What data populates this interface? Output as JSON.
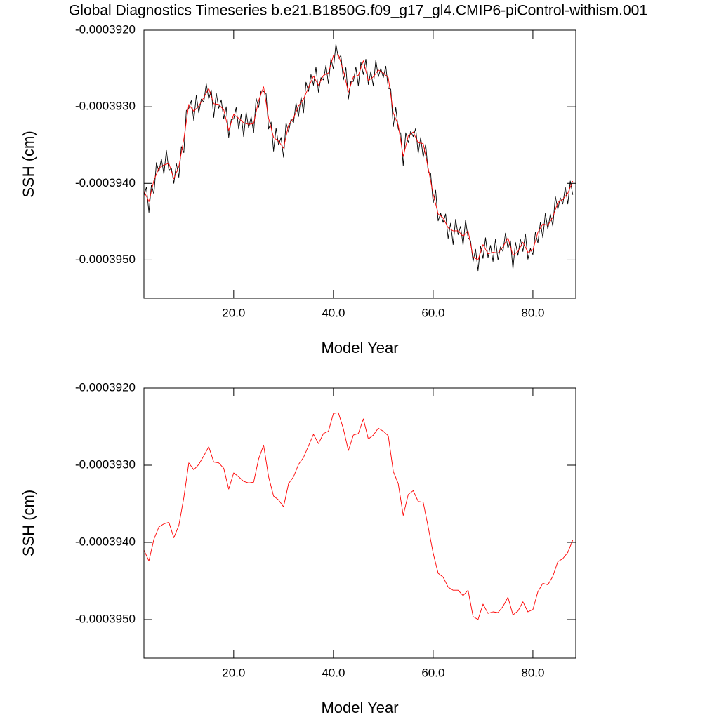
{
  "chart_data": [
    {
      "type": "line",
      "title": "Global Diagnostics Timeseries b.e21.B1850G.f09_g17_gl4.CMIP6-piControl-withism.001",
      "xlabel": "Model Year",
      "ylabel": "SSH (cm)",
      "xlim": [
        2,
        88.6
      ],
      "ylim": [
        -0.0003955,
        -0.000392
      ],
      "xticks": [
        {
          "value": 20,
          "label": "20.0"
        },
        {
          "value": 40,
          "label": "40.0"
        },
        {
          "value": 60,
          "label": "60.0"
        },
        {
          "value": 80,
          "label": "80.0"
        }
      ],
      "yticks": [
        {
          "value": -0.000392,
          "label": "-0.0003920"
        },
        {
          "value": -0.000393,
          "label": "-0.0003930"
        },
        {
          "value": -0.000394,
          "label": "-0.0003940"
        },
        {
          "value": -0.000395,
          "label": "-0.0003950"
        }
      ],
      "x": [
        2,
        3,
        4,
        5,
        6,
        7,
        8,
        9,
        10,
        11,
        12,
        13,
        14,
        15,
        16,
        17,
        18,
        19,
        20,
        21,
        22,
        23,
        24,
        25,
        26,
        27,
        28,
        29,
        30,
        31,
        32,
        33,
        34,
        35,
        36,
        37,
        38,
        39,
        40,
        41,
        42,
        43,
        44,
        45,
        46,
        47,
        48,
        49,
        50,
        51,
        52,
        53,
        54,
        55,
        56,
        57,
        58,
        59,
        60,
        61,
        62,
        63,
        64,
        65,
        66,
        67,
        68,
        69,
        70,
        71,
        72,
        73,
        74,
        75,
        76,
        77,
        78,
        79,
        80,
        81,
        82,
        83,
        84,
        85,
        86,
        87,
        88
      ],
      "series": [
        {
          "color": "#000000",
          "x": [
            2,
            2.5,
            3,
            3.5,
            4,
            4.5,
            5,
            5.5,
            6,
            6.5,
            7,
            7.5,
            8,
            8.5,
            9,
            9.5,
            10,
            10.5,
            11,
            11.5,
            12,
            12.5,
            13,
            13.5,
            14,
            14.5,
            15,
            15.5,
            16,
            16.5,
            17,
            17.5,
            18,
            18.5,
            19,
            19.5,
            20,
            20.5,
            21,
            21.5,
            22,
            22.5,
            23,
            23.5,
            24,
            24.5,
            25,
            25.5,
            26,
            26.5,
            27,
            27.5,
            28,
            28.5,
            29,
            29.5,
            30,
            30.5,
            31,
            31.5,
            32,
            32.5,
            33,
            33.5,
            34,
            34.5,
            35,
            35.5,
            36,
            36.5,
            37,
            37.5,
            38,
            38.5,
            39,
            39.5,
            40,
            40.5,
            41,
            41.5,
            42,
            42.5,
            43,
            43.5,
            44,
            44.5,
            45,
            45.5,
            46,
            46.5,
            47,
            47.5,
            48,
            48.5,
            49,
            49.5,
            50,
            50.5,
            51,
            51.5,
            52,
            52.5,
            53,
            53.5,
            54,
            54.5,
            55,
            55.5,
            56,
            56.5,
            57,
            57.5,
            58,
            58.5,
            59,
            59.5,
            60,
            60.5,
            61,
            61.5,
            62,
            62.5,
            63,
            63.5,
            64,
            64.5,
            65,
            65.5,
            66,
            66.5,
            67,
            67.5,
            68,
            68.5,
            69,
            69.5,
            70,
            70.5,
            71,
            71.5,
            72,
            72.5,
            73,
            73.5,
            74,
            74.5,
            75,
            75.5,
            76,
            76.5,
            77,
            77.5,
            78,
            78.5,
            79,
            79.5,
            80,
            80.5,
            81,
            81.5,
            82,
            82.5,
            83,
            83.5,
            84,
            84.5,
            85,
            85.5,
            86,
            86.5,
            87,
            87.5,
            88
          ],
          "values": [
            -0.00039416,
            -0.00039405,
            -0.00039438,
            -0.00039402,
            -0.00039414,
            -0.00039373,
            -0.00039385,
            -0.00039368,
            -0.00039388,
            -0.00039357,
            -0.00039383,
            -0.0003938,
            -0.000394,
            -0.00039374,
            -0.00039392,
            -0.00039352,
            -0.0003936,
            -0.00039305,
            -0.00039302,
            -0.00039292,
            -0.00039318,
            -0.00039285,
            -0.00039308,
            -0.0003929,
            -0.00039294,
            -0.0003927,
            -0.0003929,
            -0.00039278,
            -0.00039314,
            -0.00039282,
            -0.00039302,
            -0.00039291,
            -0.00039316,
            -0.000393,
            -0.0003934,
            -0.00039317,
            -0.00039316,
            -0.00039301,
            -0.00039329,
            -0.0003931,
            -0.00039339,
            -0.00039307,
            -0.00039328,
            -0.00039313,
            -0.00039334,
            -0.00039289,
            -0.00039301,
            -0.00039279,
            -0.0003928,
            -0.00039283,
            -0.00039329,
            -0.0003932,
            -0.00039358,
            -0.00039328,
            -0.0003935,
            -0.0003934,
            -0.00039366,
            -0.00039321,
            -0.00039333,
            -0.00039316,
            -0.00039321,
            -0.00039295,
            -0.00039313,
            -0.00039287,
            -0.00039308,
            -0.00039268,
            -0.0003928,
            -0.00039258,
            -0.00039272,
            -0.00039248,
            -0.00039281,
            -0.00039262,
            -0.00039265,
            -0.00039246,
            -0.0003927,
            -0.00039237,
            -0.00039251,
            -0.00039218,
            -0.00039237,
            -0.00039233,
            -0.00039265,
            -0.00039249,
            -0.0003929,
            -0.00039267,
            -0.00039267,
            -0.00039248,
            -0.00039273,
            -0.00039242,
            -0.00039258,
            -0.00039238,
            -0.00039271,
            -0.00039254,
            -0.00039273,
            -0.00039239,
            -0.00039261,
            -0.0003925,
            -0.00039262,
            -0.00039247,
            -0.00039276,
            -0.00039277,
            -0.00039326,
            -0.00039301,
            -0.00039329,
            -0.00039335,
            -0.00039377,
            -0.00039334,
            -0.00039347,
            -0.00039332,
            -0.00039339,
            -0.00039328,
            -0.00039361,
            -0.0003934,
            -0.00039366,
            -0.00039349,
            -0.00039385,
            -0.00039387,
            -0.00039426,
            -0.00039409,
            -0.00039449,
            -0.00039439,
            -0.00039451,
            -0.0003944,
            -0.00039472,
            -0.00039452,
            -0.0003948,
            -0.00039447,
            -0.00039467,
            -0.00039456,
            -0.00039481,
            -0.00039448,
            -0.00039471,
            -0.00039475,
            -0.00039502,
            -0.00039486,
            -0.00039514,
            -0.00039482,
            -0.00039498,
            -0.00039471,
            -0.00039497,
            -0.00039481,
            -0.00039502,
            -0.00039473,
            -0.000395,
            -0.00039483,
            -0.00039489,
            -0.00039465,
            -0.00039485,
            -0.00039475,
            -0.00039512,
            -0.00039477,
            -0.00039494,
            -0.00039473,
            -0.00039489,
            -0.00039466,
            -0.00039499,
            -0.00039485,
            -0.00039493,
            -0.00039464,
            -0.00039478,
            -0.00039451,
            -0.00039471,
            -0.00039439,
            -0.0003946,
            -0.0003944,
            -0.00039456,
            -0.00039417,
            -0.00039434,
            -0.00039419,
            -0.00039427,
            -0.00039405,
            -0.00039427,
            -0.00039397,
            -0.00039415
          ]
        },
        {
          "color": "#ff0000",
          "values": [
            -0.0003941,
            -0.00039424,
            -0.00039396,
            -0.0003938,
            -0.00039376,
            -0.00039374,
            -0.00039394,
            -0.00039378,
            -0.00039342,
            -0.00039297,
            -0.00039306,
            -0.00039299,
            -0.00039288,
            -0.00039276,
            -0.00039296,
            -0.00039297,
            -0.00039304,
            -0.00039331,
            -0.0003931,
            -0.00039315,
            -0.00039321,
            -0.00039323,
            -0.00039322,
            -0.00039292,
            -0.00039274,
            -0.00039315,
            -0.0003934,
            -0.00039345,
            -0.00039354,
            -0.00039324,
            -0.00039315,
            -0.00039299,
            -0.0003929,
            -0.00039275,
            -0.0003926,
            -0.00039272,
            -0.00039259,
            -0.00039256,
            -0.00039233,
            -0.00039232,
            -0.00039253,
            -0.00039281,
            -0.00039261,
            -0.00039259,
            -0.0003924,
            -0.00039266,
            -0.00039261,
            -0.00039252,
            -0.00039256,
            -0.00039262,
            -0.00039308,
            -0.00039324,
            -0.00039365,
            -0.00039338,
            -0.00039333,
            -0.00039347,
            -0.00039348,
            -0.0003938,
            -0.00039414,
            -0.0003944,
            -0.00039445,
            -0.00039458,
            -0.00039462,
            -0.00039462,
            -0.00039469,
            -0.00039462,
            -0.00039496,
            -0.000395,
            -0.0003948,
            -0.00039492,
            -0.0003949,
            -0.00039491,
            -0.00039483,
            -0.00039471,
            -0.00039494,
            -0.00039489,
            -0.00039477,
            -0.0003949,
            -0.00039487,
            -0.00039464,
            -0.00039453,
            -0.00039455,
            -0.00039444,
            -0.00039425,
            -0.00039421,
            -0.00039413,
            -0.00039397
          ]
        }
      ]
    },
    {
      "type": "line",
      "xlabel": "Model Year",
      "ylabel": "SSH (cm)",
      "xlim": [
        2,
        88.6
      ],
      "ylim": [
        -0.0003955,
        -0.000392
      ],
      "xticks": [
        {
          "value": 20,
          "label": "20.0"
        },
        {
          "value": 40,
          "label": "40.0"
        },
        {
          "value": 60,
          "label": "60.0"
        },
        {
          "value": 80,
          "label": "80.0"
        }
      ],
      "yticks": [
        {
          "value": -0.000392,
          "label": "-0.0003920"
        },
        {
          "value": -0.000393,
          "label": "-0.0003930"
        },
        {
          "value": -0.000394,
          "label": "-0.0003940"
        },
        {
          "value": -0.000395,
          "label": "-0.0003950"
        }
      ],
      "x": [
        2,
        3,
        4,
        5,
        6,
        7,
        8,
        9,
        10,
        11,
        12,
        13,
        14,
        15,
        16,
        17,
        18,
        19,
        20,
        21,
        22,
        23,
        24,
        25,
        26,
        27,
        28,
        29,
        30,
        31,
        32,
        33,
        34,
        35,
        36,
        37,
        38,
        39,
        40,
        41,
        42,
        43,
        44,
        45,
        46,
        47,
        48,
        49,
        50,
        51,
        52,
        53,
        54,
        55,
        56,
        57,
        58,
        59,
        60,
        61,
        62,
        63,
        64,
        65,
        66,
        67,
        68,
        69,
        70,
        71,
        72,
        73,
        74,
        75,
        76,
        77,
        78,
        79,
        80,
        81,
        82,
        83,
        84,
        85,
        86,
        87,
        88
      ],
      "series": [
        {
          "color": "#ff0000",
          "values": [
            -0.0003941,
            -0.00039424,
            -0.00039396,
            -0.0003938,
            -0.00039376,
            -0.00039374,
            -0.00039394,
            -0.00039378,
            -0.00039342,
            -0.00039297,
            -0.00039306,
            -0.00039299,
            -0.00039288,
            -0.00039276,
            -0.00039296,
            -0.00039297,
            -0.00039304,
            -0.00039331,
            -0.0003931,
            -0.00039315,
            -0.00039321,
            -0.00039323,
            -0.00039322,
            -0.00039292,
            -0.00039274,
            -0.00039315,
            -0.0003934,
            -0.00039345,
            -0.00039354,
            -0.00039324,
            -0.00039315,
            -0.00039299,
            -0.0003929,
            -0.00039275,
            -0.0003926,
            -0.00039272,
            -0.00039259,
            -0.00039256,
            -0.00039233,
            -0.00039232,
            -0.00039253,
            -0.00039281,
            -0.00039261,
            -0.00039259,
            -0.0003924,
            -0.00039266,
            -0.00039261,
            -0.00039252,
            -0.00039256,
            -0.00039262,
            -0.00039308,
            -0.00039324,
            -0.00039365,
            -0.00039338,
            -0.00039333,
            -0.00039347,
            -0.00039348,
            -0.0003938,
            -0.00039414,
            -0.0003944,
            -0.00039445,
            -0.00039458,
            -0.00039462,
            -0.00039462,
            -0.00039469,
            -0.00039462,
            -0.00039496,
            -0.000395,
            -0.0003948,
            -0.00039492,
            -0.0003949,
            -0.00039491,
            -0.00039483,
            -0.00039471,
            -0.00039494,
            -0.00039489,
            -0.00039477,
            -0.0003949,
            -0.00039487,
            -0.00039464,
            -0.00039453,
            -0.00039455,
            -0.00039444,
            -0.00039425,
            -0.00039421,
            -0.00039413,
            -0.00039397
          ]
        }
      ]
    }
  ]
}
